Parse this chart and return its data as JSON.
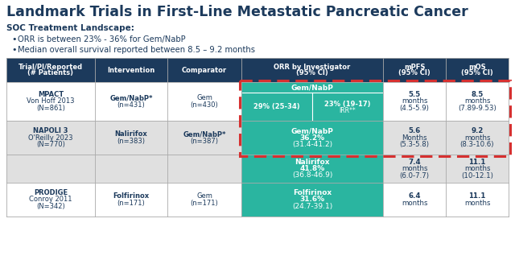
{
  "title": "Landmark Trials in First-Line Metastatic Pancreatic Cancer",
  "subtitle_bold": "SOC Treatment Landscape:",
  "bullets": [
    "ORR is between 23% - 36% for Gem/NabP",
    "Median overall survival reported between 8.5 – 9.2 months"
  ],
  "header_bg": "#1c3a5c",
  "teal_color": "#2ab5a0",
  "row_alt_color": "#e0e0e0",
  "title_color": "#1c3a5c",
  "body_text_color": "#1c3a5c",
  "dashed_box_color": "#d63030",
  "col_headers": [
    "Trial/PI/Reported\n(# Patients)",
    "Intervention",
    "Comparator",
    "ORR by Investigator\n(95% CI)",
    "mPFS\n(95% CI)",
    "mOS\n(95% CI)"
  ]
}
